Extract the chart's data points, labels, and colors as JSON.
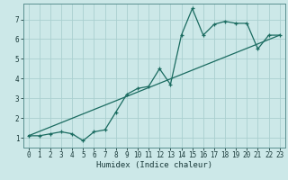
{
  "xlabel": "Humidex (Indice chaleur)",
  "ylabel": "",
  "bg_color": "#cce8e8",
  "grid_color": "#aad0d0",
  "line_color": "#1a6b60",
  "spine_color": "#5a9090",
  "xlim": [
    -0.5,
    23.5
  ],
  "ylim": [
    0.5,
    7.8
  ],
  "xticks": [
    0,
    1,
    2,
    3,
    4,
    5,
    6,
    7,
    8,
    9,
    10,
    11,
    12,
    13,
    14,
    15,
    16,
    17,
    18,
    19,
    20,
    21,
    22,
    23
  ],
  "yticks": [
    1,
    2,
    3,
    4,
    5,
    6,
    7
  ],
  "line1_x": [
    0,
    1,
    2,
    3,
    4,
    5,
    6,
    7,
    8,
    9,
    10,
    11,
    12,
    13,
    14,
    15,
    16,
    17,
    18,
    19,
    20,
    21,
    22,
    23
  ],
  "line1_y": [
    1.1,
    1.1,
    1.2,
    1.3,
    1.2,
    0.85,
    1.3,
    1.4,
    2.3,
    3.2,
    3.5,
    3.6,
    4.5,
    3.7,
    6.2,
    7.55,
    6.2,
    6.75,
    6.9,
    6.8,
    6.8,
    5.5,
    6.2,
    6.2
  ],
  "line2_x": [
    0,
    23
  ],
  "line2_y": [
    1.1,
    6.2
  ],
  "tick_fontsize": 5.5,
  "xlabel_fontsize": 6.5
}
